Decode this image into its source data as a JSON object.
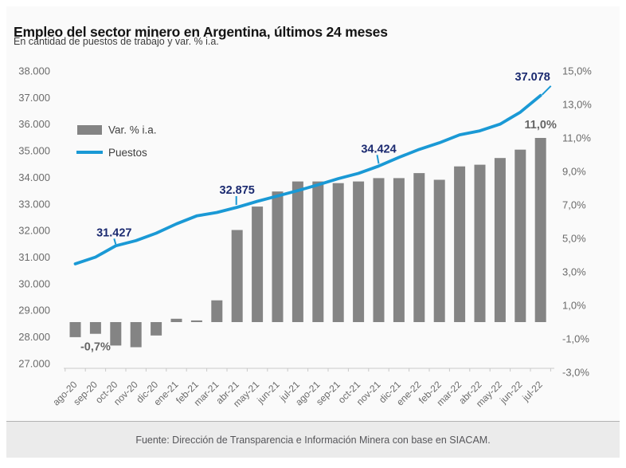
{
  "footer": {
    "source": "Fuente: Dirección de Transparencia e Información Minera con base en SIACAM."
  },
  "chart_data": {
    "type": "bar+line-dual-axis",
    "title": "Empleo del sector minero en Argentina, últimos 24 meses",
    "subtitle": "En cantidad de puestos de trabajo y var. % i.a.",
    "categories": [
      "ago-20",
      "sep-20",
      "oct-20",
      "nov-20",
      "dic-20",
      "ene-21",
      "feb-21",
      "mar-21",
      "abr-21",
      "may-21",
      "jun-21",
      "jul-21",
      "ago-21",
      "sep-21",
      "oct-21",
      "nov-21",
      "dic-21",
      "ene-22",
      "feb-22",
      "mar-22",
      "abr-22",
      "may-22",
      "jun-22",
      "jul-22"
    ],
    "series": [
      {
        "name": "Var. % i.a.",
        "type": "bar",
        "axis": "right",
        "color": "#848484",
        "values": [
          -0.9,
          -0.7,
          -1.4,
          -1.5,
          -0.8,
          0.2,
          0.1,
          1.3,
          5.5,
          6.9,
          7.8,
          8.4,
          8.4,
          8.3,
          8.4,
          8.6,
          8.6,
          8.9,
          8.5,
          9.3,
          9.4,
          9.8,
          10.3,
          11.0
        ]
      },
      {
        "name": "Puestos",
        "type": "line",
        "axis": "left",
        "color": "#1a99d5",
        "values": [
          30750,
          31000,
          31427,
          31620,
          31900,
          32250,
          32550,
          32680,
          32875,
          33100,
          33300,
          33500,
          33720,
          33950,
          34150,
          34424,
          34750,
          35050,
          35300,
          35600,
          35750,
          36000,
          36450,
          37078
        ]
      }
    ],
    "left_axis": {
      "min": 27000,
      "max": 38000,
      "ticks": [
        {
          "value": 38000,
          "label": "38.000"
        },
        {
          "value": 37000,
          "label": "37.000"
        },
        {
          "value": 36000,
          "label": "36.000"
        },
        {
          "value": 35000,
          "label": "35.000"
        },
        {
          "value": 34000,
          "label": "34.000"
        },
        {
          "value": 33000,
          "label": "33.000"
        },
        {
          "value": 32000,
          "label": "32.000"
        },
        {
          "value": 31000,
          "label": "31.000"
        },
        {
          "value": 30000,
          "label": "30.000"
        },
        {
          "value": 29000,
          "label": "29.000"
        },
        {
          "value": 28000,
          "label": "28.000"
        },
        {
          "value": 27000,
          "label": "27.000"
        }
      ]
    },
    "right_axis": {
      "min": -3,
      "max": 15,
      "ticks": [
        {
          "value": 15,
          "label": "15,0%"
        },
        {
          "value": 13,
          "label": "13,0%"
        },
        {
          "value": 11,
          "label": "11,0%"
        },
        {
          "value": 9,
          "label": "9,0%"
        },
        {
          "value": 7,
          "label": "7,0%"
        },
        {
          "value": 5,
          "label": "5,0%"
        },
        {
          "value": 3,
          "label": "3,0%"
        },
        {
          "value": 1,
          "label": "1,0%"
        },
        {
          "value": -1,
          "label": "-1,0%"
        },
        {
          "value": -3,
          "label": "-3,0%"
        }
      ]
    },
    "legend": {
      "position": "top-left",
      "items": [
        "Var. % i.a.",
        "Puestos"
      ]
    },
    "grid": "off",
    "annotations": [
      {
        "series": "line",
        "category": "oct-20",
        "text": "31.427",
        "text_dx": -2,
        "text_dy": -12,
        "leader": [
          -2,
          -9,
          0,
          -2
        ]
      },
      {
        "series": "line",
        "category": "abr-21",
        "text": "32.875",
        "text_dx": 0,
        "text_dy": -17,
        "leader": [
          -1,
          -14,
          -1,
          -3
        ]
      },
      {
        "series": "line",
        "category": "nov-21",
        "text": "34.424",
        "text_dx": 0,
        "text_dy": -17,
        "leader": [
          -2,
          -14,
          0,
          -3
        ]
      },
      {
        "series": "line",
        "category": "jul-22",
        "text": "37.078",
        "text_dx": -10,
        "text_dy": -19,
        "leader": [
          13,
          -12,
          2,
          -1
        ]
      },
      {
        "series": "bar",
        "category": "sep-20",
        "text": "-0,7%",
        "text_dx": 0,
        "text_dy": 21
      },
      {
        "series": "bar",
        "category": "jul-22",
        "text": "11,0%",
        "text_dx": 0,
        "text_dy": -12
      }
    ]
  }
}
